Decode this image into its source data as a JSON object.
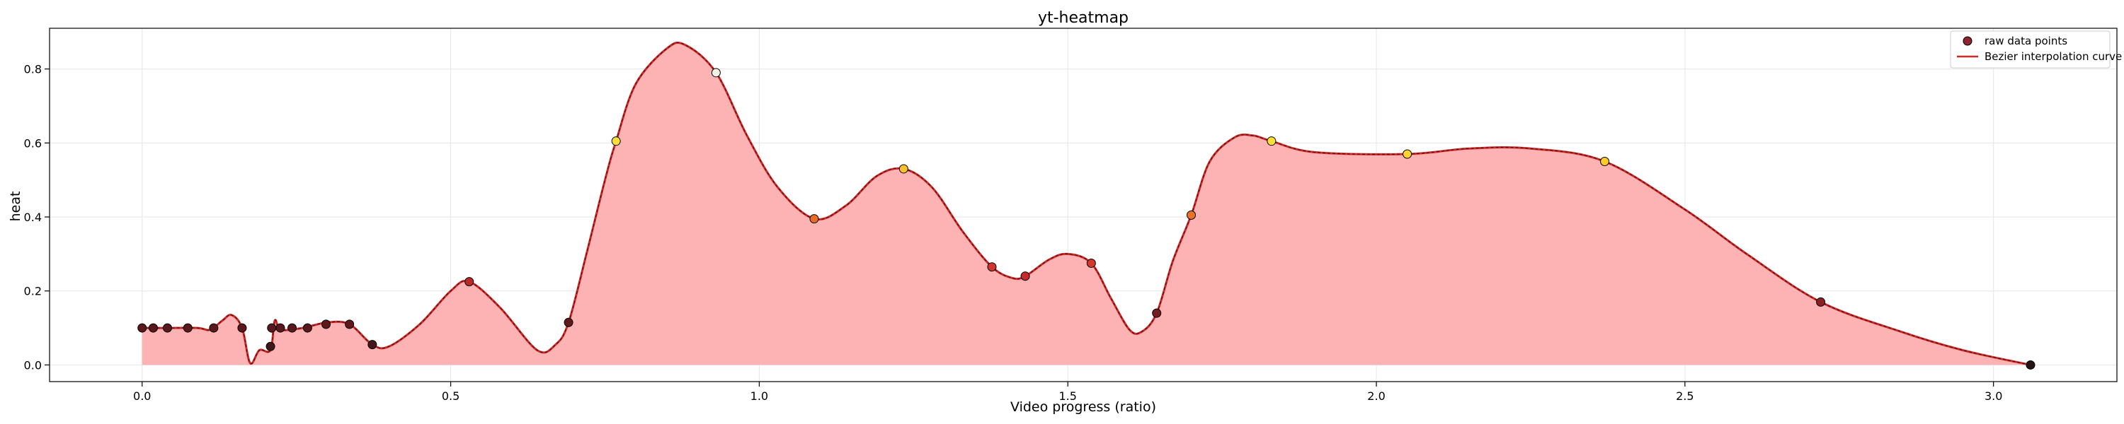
{
  "chart_data": {
    "type": "area",
    "title": "yt-heatmap",
    "xlabel": "Video progress (ratio)",
    "ylabel": "heat",
    "xlim": [
      -0.15,
      3.2
    ],
    "ylim": [
      -0.045,
      0.91
    ],
    "xticks": [
      0.0,
      0.5,
      1.0,
      1.5,
      2.0,
      2.5,
      3.0
    ],
    "xtick_labels": [
      "0.0",
      "0.5",
      "1.0",
      "1.5",
      "2.0",
      "2.5",
      "3.0"
    ],
    "yticks": [
      0.0,
      0.2,
      0.4,
      0.6,
      0.8
    ],
    "ytick_labels": [
      "0.0",
      "0.2",
      "0.4",
      "0.6",
      "0.8"
    ],
    "grid": true,
    "legend_position": "top-right",
    "series": [
      {
        "name": "raw data points",
        "kind": "scatter",
        "points": [
          [
            0.0,
            0.1
          ],
          [
            0.018,
            0.1
          ],
          [
            0.041,
            0.1
          ],
          [
            0.074,
            0.1
          ],
          [
            0.116,
            0.1
          ],
          [
            0.162,
            0.1
          ],
          [
            0.208,
            0.05
          ],
          [
            0.21,
            0.1
          ],
          [
            0.224,
            0.1
          ],
          [
            0.243,
            0.1
          ],
          [
            0.268,
            0.1
          ],
          [
            0.298,
            0.11
          ],
          [
            0.336,
            0.11
          ],
          [
            0.373,
            0.055
          ],
          [
            0.53,
            0.225
          ],
          [
            0.691,
            0.115
          ],
          [
            0.768,
            0.605
          ],
          [
            0.93,
            0.79
          ],
          [
            1.089,
            0.395
          ],
          [
            1.234,
            0.53
          ],
          [
            1.377,
            0.265
          ],
          [
            1.431,
            0.24
          ],
          [
            1.538,
            0.275
          ],
          [
            1.644,
            0.14
          ],
          [
            1.7,
            0.405
          ],
          [
            1.83,
            0.605
          ],
          [
            2.05,
            0.57
          ],
          [
            2.37,
            0.55
          ],
          [
            2.72,
            0.17
          ],
          [
            3.06,
            0.0
          ]
        ]
      },
      {
        "name": "Bezier interpolation curve",
        "kind": "line",
        "points": [
          [
            0.0,
            0.1
          ],
          [
            0.04,
            0.1
          ],
          [
            0.09,
            0.1
          ],
          [
            0.11,
            0.095
          ],
          [
            0.13,
            0.12
          ],
          [
            0.145,
            0.135
          ],
          [
            0.162,
            0.1
          ],
          [
            0.175,
            0.005
          ],
          [
            0.19,
            0.04
          ],
          [
            0.208,
            0.04
          ],
          [
            0.215,
            0.12
          ],
          [
            0.225,
            0.095
          ],
          [
            0.26,
            0.1
          ],
          [
            0.3,
            0.115
          ],
          [
            0.336,
            0.11
          ],
          [
            0.373,
            0.055
          ],
          [
            0.4,
            0.05
          ],
          [
            0.45,
            0.11
          ],
          [
            0.5,
            0.2
          ],
          [
            0.53,
            0.225
          ],
          [
            0.58,
            0.155
          ],
          [
            0.64,
            0.04
          ],
          [
            0.67,
            0.055
          ],
          [
            0.691,
            0.115
          ],
          [
            0.72,
            0.3
          ],
          [
            0.75,
            0.5
          ],
          [
            0.768,
            0.605
          ],
          [
            0.8,
            0.76
          ],
          [
            0.85,
            0.855
          ],
          [
            0.88,
            0.865
          ],
          [
            0.93,
            0.79
          ],
          [
            0.98,
            0.62
          ],
          [
            1.03,
            0.48
          ],
          [
            1.089,
            0.395
          ],
          [
            1.14,
            0.43
          ],
          [
            1.19,
            0.51
          ],
          [
            1.234,
            0.53
          ],
          [
            1.28,
            0.48
          ],
          [
            1.33,
            0.36
          ],
          [
            1.377,
            0.265
          ],
          [
            1.41,
            0.235
          ],
          [
            1.431,
            0.24
          ],
          [
            1.47,
            0.285
          ],
          [
            1.5,
            0.3
          ],
          [
            1.538,
            0.275
          ],
          [
            1.57,
            0.18
          ],
          [
            1.6,
            0.095
          ],
          [
            1.62,
            0.09
          ],
          [
            1.644,
            0.14
          ],
          [
            1.67,
            0.28
          ],
          [
            1.7,
            0.405
          ],
          [
            1.73,
            0.55
          ],
          [
            1.77,
            0.615
          ],
          [
            1.8,
            0.62
          ],
          [
            1.83,
            0.605
          ],
          [
            1.9,
            0.575
          ],
          [
            2.05,
            0.57
          ],
          [
            2.15,
            0.585
          ],
          [
            2.25,
            0.585
          ],
          [
            2.37,
            0.55
          ],
          [
            2.5,
            0.42
          ],
          [
            2.6,
            0.3
          ],
          [
            2.72,
            0.17
          ],
          [
            2.85,
            0.09
          ],
          [
            2.95,
            0.04
          ],
          [
            3.06,
            0.0
          ]
        ]
      }
    ]
  }
}
